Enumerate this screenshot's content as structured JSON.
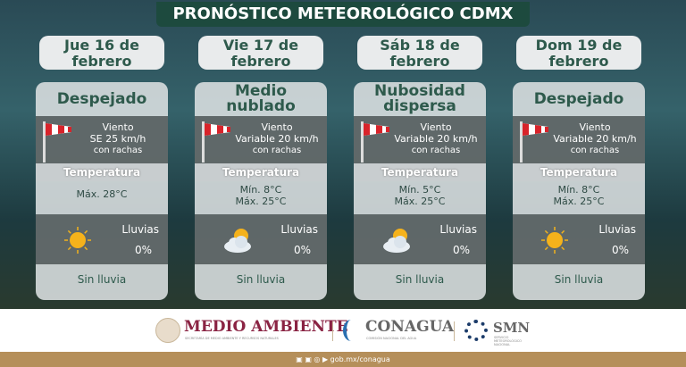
{
  "title": "PRONÓSTICO METEOROLÓGICO CDMX",
  "days": [
    {
      "date": [
        "Jue 16 de",
        "febrero"
      ],
      "sky": [
        "Despejado"
      ],
      "wind_label": "Viento",
      "wind": "SE 25 km/h",
      "gusts": "con rachas",
      "temp_label": "Temperatura",
      "min": "",
      "max": "Máx. 28°C",
      "rain_label": "Lluvias",
      "rain": "0%",
      "icon": "sun-icon",
      "summary": "Sin lluvia"
    },
    {
      "date": [
        "Vie 17 de",
        "febrero"
      ],
      "sky": [
        "Medio",
        "nublado"
      ],
      "wind_label": "Viento",
      "wind": "Variable 20 km/h",
      "gusts": "con rachas",
      "temp_label": "Temperatura",
      "min": "Mín. 8°C",
      "max": "Máx. 25°C",
      "rain_label": "Lluvias",
      "rain": "0%",
      "icon": "partly-cloudy-icon",
      "summary": "Sin lluvia"
    },
    {
      "date": [
        "Sáb 18 de",
        "febrero"
      ],
      "sky": [
        "Nubosidad",
        "dispersa"
      ],
      "wind_label": "Viento",
      "wind": "Variable 20 km/h",
      "gusts": "con rachas",
      "temp_label": "Temperatura",
      "min": "Mín. 5°C",
      "max": "Máx. 25°C",
      "rain_label": "Lluvias",
      "rain": "0%",
      "icon": "partly-cloudy-icon",
      "summary": "Sin lluvia"
    },
    {
      "date": [
        "Dom 19 de",
        "febrero"
      ],
      "sky": [
        "Despejado"
      ],
      "wind_label": "Viento",
      "wind": "Variable 20 km/h",
      "gusts": "con rachas",
      "temp_label": "Temperatura",
      "min": "Mín. 8°C",
      "max": "Máx. 25°C",
      "rain_label": "Lluvias",
      "rain": "0%",
      "icon": "sun-icon",
      "summary": "Sin lluvia"
    }
  ],
  "footer": {
    "logo1": "MEDIO AMBIENTE",
    "logo1_sub": "SECRETARÍA DE MEDIO AMBIENTE Y RECURSOS NATURALES",
    "logo2": "CONAGUA",
    "logo2_sub": "COMISIÓN NACIONAL DEL AGUA",
    "logo3": "SMN",
    "logo3_sub": "SERVICIO METEOROLÓGICO NACIONAL",
    "url": "gob.mx/conagua"
  },
  "colors": {
    "title_bg": "#1d4a3e",
    "accent_text": "#2e5a4c",
    "footer_bar": "#b58f5a",
    "logo1": "#8a2343"
  }
}
